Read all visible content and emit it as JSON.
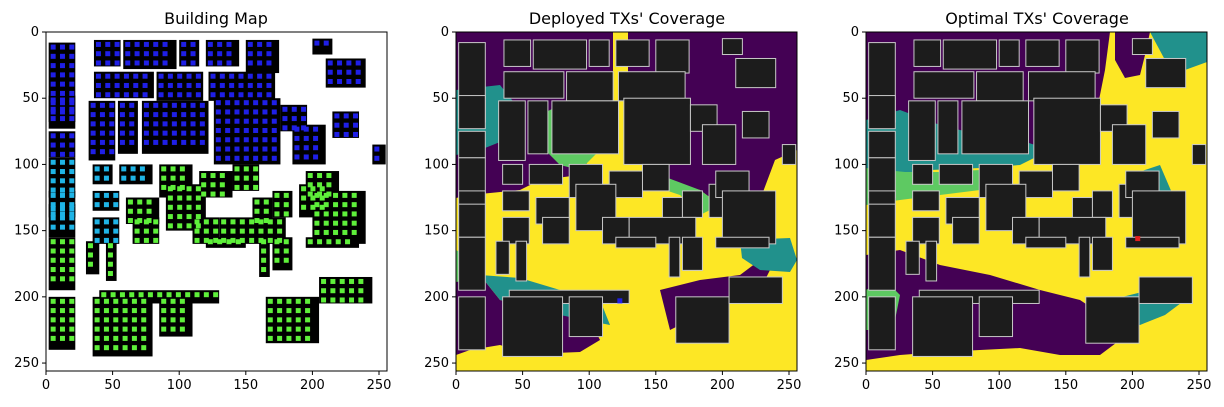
{
  "chart_data": [
    {
      "type": "heatmap",
      "title": "Building Map",
      "xlim": [
        0,
        256
      ],
      "ylim": [
        256,
        0
      ],
      "x_ticks": [
        0,
        50,
        100,
        150,
        200,
        250
      ],
      "y_ticks": [
        0,
        50,
        100,
        150,
        200,
        250
      ],
      "marker_colors": {
        "blue": "#1f1fe6",
        "cyan": "#1fb4e6",
        "green": "#5ef03a"
      },
      "building_color": "#000000"
    },
    {
      "type": "heatmap",
      "title": "Deployed TXs' Coverage",
      "xlim": [
        0,
        256
      ],
      "ylim": [
        256,
        0
      ],
      "x_ticks": [
        0,
        50,
        100,
        150,
        200,
        250
      ],
      "y_ticks": [
        0,
        50,
        100,
        150,
        200,
        250
      ],
      "colormap": [
        "#440154",
        "#21918c",
        "#5ec962",
        "#fde725"
      ],
      "tx_marker": {
        "x": 123,
        "y": 203,
        "color": "#1f1fe6"
      }
    },
    {
      "type": "heatmap",
      "title": "Optimal TXs' Coverage",
      "xlim": [
        0,
        256
      ],
      "ylim": [
        256,
        0
      ],
      "x_ticks": [
        0,
        50,
        100,
        150,
        200,
        250
      ],
      "y_ticks": [
        0,
        50,
        100,
        150,
        200,
        250
      ],
      "colormap": [
        "#440154",
        "#21918c",
        "#5ec962",
        "#fde725"
      ],
      "tx_marker": {
        "x": 204,
        "y": 156,
        "color": "#e61f1f"
      }
    }
  ]
}
